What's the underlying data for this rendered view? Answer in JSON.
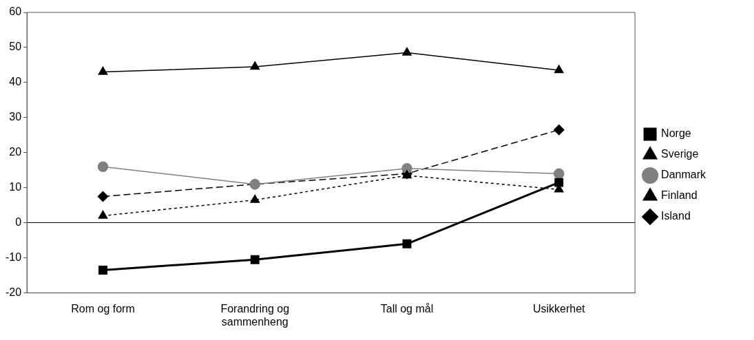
{
  "chart_data": {
    "type": "line",
    "categories": [
      "Rom og form",
      "Forandring og sammenheng",
      "Tall og mål",
      "Usikkerhet"
    ],
    "ylim": [
      -20,
      60
    ],
    "yticks": [
      -20,
      -10,
      0,
      10,
      20,
      30,
      40,
      50,
      60
    ],
    "legend": "right",
    "series": [
      {
        "name": "Norge",
        "color": "#000000",
        "marker": "square",
        "line_style": "solid",
        "values": [
          -13.5,
          -10.5,
          -6,
          11.5
        ]
      },
      {
        "name": "Sverige",
        "color": "#000000",
        "marker": "triangle",
        "line_style": "dotted",
        "values": [
          2,
          6.5,
          13.5,
          9.5
        ]
      },
      {
        "name": "Danmark",
        "color": "#808080",
        "marker": "circle",
        "line_style": "solid",
        "values": [
          16,
          11,
          15.5,
          14
        ]
      },
      {
        "name": "Finland",
        "color": "#000000",
        "marker": "triangle",
        "line_style": "solid",
        "values": [
          43,
          44.5,
          48.5,
          43.5
        ]
      },
      {
        "name": "Island",
        "color": "#000000",
        "marker": "diamond",
        "line_style": "dashed",
        "values": [
          7.5,
          11,
          14,
          26.5
        ]
      }
    ]
  }
}
